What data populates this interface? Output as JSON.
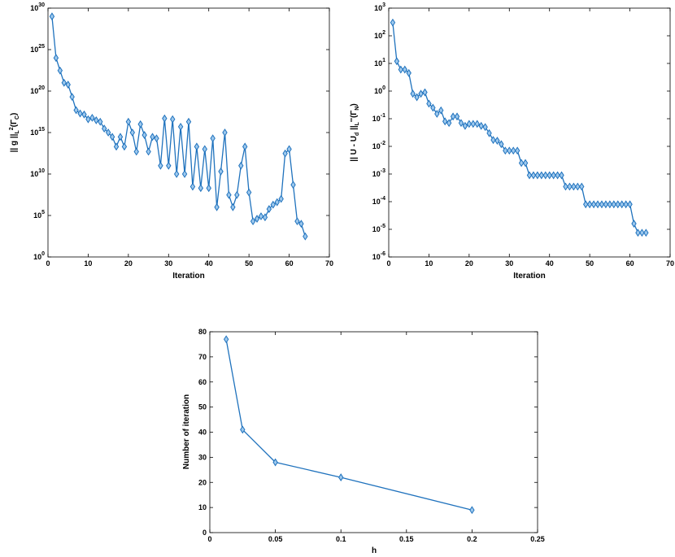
{
  "colors": {
    "series": "#1f72bd",
    "marker_fill": "#9ec9ee"
  },
  "chart_data": [
    {
      "type": "line",
      "marker": "diamond",
      "xlabel": "Iteration",
      "ylabel_parts": {
        "main": "|| g ||",
        "sub1": "L",
        "sup": "2",
        "sub2": "(Γ",
        "sub3": "C",
        "end": ")"
      },
      "xlim": [
        0,
        70
      ],
      "x_ticks": [
        0,
        10,
        20,
        30,
        40,
        50,
        60,
        70
      ],
      "yscale": "log",
      "ylim": [
        1,
        1e+30
      ],
      "y_ticks": [
        {
          "base": "10",
          "exp": "0",
          "value": 1
        },
        {
          "base": "10",
          "exp": "5",
          "value": 100000.0
        },
        {
          "base": "10",
          "exp": "10",
          "value": 10000000000.0
        },
        {
          "base": "10",
          "exp": "15",
          "value": 1000000000000000.0
        },
        {
          "base": "10",
          "exp": "20",
          "value": 1e+20
        },
        {
          "base": "10",
          "exp": "25",
          "value": 1e+25
        },
        {
          "base": "10",
          "exp": "30",
          "value": 1e+30
        }
      ],
      "x": [
        1,
        2,
        3,
        4,
        5,
        6,
        7,
        8,
        9,
        10,
        11,
        12,
        13,
        14,
        15,
        16,
        17,
        18,
        19,
        20,
        21,
        22,
        23,
        24,
        25,
        26,
        27,
        28,
        29,
        30,
        31,
        32,
        33,
        34,
        35,
        36,
        37,
        38,
        39,
        40,
        41,
        42,
        43,
        44,
        45,
        46,
        47,
        48,
        49,
        50,
        51,
        52,
        53,
        54,
        55,
        56,
        57,
        58,
        59,
        60,
        61,
        62,
        63,
        64
      ],
      "y": [
        1e+29,
        1e+24,
        3e+22,
        1e+21,
        6e+20,
        2e+19,
        5e+17,
        2e+17,
        1.5e+17,
        4e+16,
        6e+16,
        3e+16,
        2e+16,
        3000000000000000.0,
        1000000000000000.0,
        300000000000000.0,
        20000000000000.0,
        300000000000000.0,
        20000000000000.0,
        2e+16,
        1000000000000000.0,
        5000000000000.0,
        1e+16,
        500000000000000.0,
        5000000000000.0,
        300000000000000.0,
        200000000000000.0,
        100000000000.0,
        5e+16,
        100000000000.0,
        4e+16,
        10000000000.0,
        5000000000000000.0,
        10000000000.0,
        2e+16,
        300000000.0,
        20000000000000.0,
        200000000.0,
        10000000000000.0,
        200000000.0,
        200000000000000.0,
        1000000.0,
        20000000000.0,
        1000000000000000.0,
        30000000.0,
        1000000.0,
        30000000.0,
        100000000000.0,
        20000000000000.0,
        60000000.0,
        20000.0,
        40000.0,
        80000.0,
        60000.0,
        600000.0,
        2000000.0,
        4000000.0,
        10000000.0,
        3000000000000.0,
        10000000000000.0,
        500000000.0,
        20000.0,
        10000.0,
        300.0
      ]
    },
    {
      "type": "line",
      "marker": "diamond",
      "xlabel": "Iteration",
      "ylabel_parts": {
        "main": "|| U - U",
        "sub1": "d",
        "mid": " ||",
        "sub2": "L",
        "sup": "∞",
        "sub3": "(Γ",
        "sub4": "N",
        "end": ")"
      },
      "xlim": [
        0,
        70
      ],
      "x_ticks": [
        0,
        10,
        20,
        30,
        40,
        50,
        60,
        70
      ],
      "yscale": "log",
      "ylim": [
        1e-06,
        1000.0
      ],
      "y_ticks": [
        {
          "base": "10",
          "exp": "-6",
          "value": 1e-06
        },
        {
          "base": "10",
          "exp": "-5",
          "value": 1e-05
        },
        {
          "base": "10",
          "exp": "-4",
          "value": 0.0001
        },
        {
          "base": "10",
          "exp": "-3",
          "value": 0.001
        },
        {
          "base": "10",
          "exp": "-2",
          "value": 0.01
        },
        {
          "base": "10",
          "exp": "-1",
          "value": 0.1
        },
        {
          "base": "10",
          "exp": "0",
          "value": 1
        },
        {
          "base": "10",
          "exp": "1",
          "value": 10
        },
        {
          "base": "10",
          "exp": "2",
          "value": 100
        },
        {
          "base": "10",
          "exp": "3",
          "value": 1000
        }
      ],
      "x": [
        1,
        2,
        3,
        4,
        5,
        6,
        7,
        8,
        9,
        10,
        11,
        12,
        13,
        14,
        15,
        16,
        17,
        18,
        19,
        20,
        21,
        22,
        23,
        24,
        25,
        26,
        27,
        28,
        29,
        30,
        31,
        32,
        33,
        34,
        35,
        36,
        37,
        38,
        39,
        40,
        41,
        42,
        43,
        44,
        45,
        46,
        47,
        48,
        49,
        50,
        51,
        52,
        53,
        54,
        55,
        56,
        57,
        58,
        59,
        60,
        61,
        62,
        63,
        64
      ],
      "y": [
        300,
        12,
        6,
        6,
        4.5,
        0.8,
        0.6,
        0.8,
        0.9,
        0.35,
        0.25,
        0.15,
        0.2,
        0.08,
        0.07,
        0.12,
        0.12,
        0.07,
        0.055,
        0.065,
        0.065,
        0.065,
        0.055,
        0.05,
        0.03,
        0.017,
        0.016,
        0.012,
        0.007,
        0.007,
        0.007,
        0.007,
        0.0025,
        0.0025,
        0.0009,
        0.0009,
        0.0009,
        0.0009,
        0.0009,
        0.0009,
        0.0009,
        0.0009,
        0.0009,
        0.00035,
        0.00035,
        0.00035,
        0.00035,
        0.00035,
        8e-05,
        8e-05,
        8e-05,
        8e-05,
        8e-05,
        8e-05,
        8e-05,
        8e-05,
        8e-05,
        8e-05,
        8e-05,
        8e-05,
        1.6e-05,
        7.5e-06,
        7.5e-06,
        7.5e-06
      ]
    },
    {
      "type": "line",
      "marker": "diamond",
      "xlabel": "h",
      "ylabel": "Number of iteration",
      "xlim": [
        0,
        0.25
      ],
      "x_ticks": [
        "0",
        "0.05",
        "0.1",
        "0.15",
        "0.2",
        "0.25"
      ],
      "ylim": [
        0,
        80
      ],
      "y_ticks": [
        "0",
        "10",
        "20",
        "30",
        "40",
        "50",
        "60",
        "70",
        "80"
      ],
      "x": [
        0.0125,
        0.025,
        0.05,
        0.1,
        0.2
      ],
      "y": [
        77,
        41,
        28,
        22,
        9
      ]
    }
  ]
}
